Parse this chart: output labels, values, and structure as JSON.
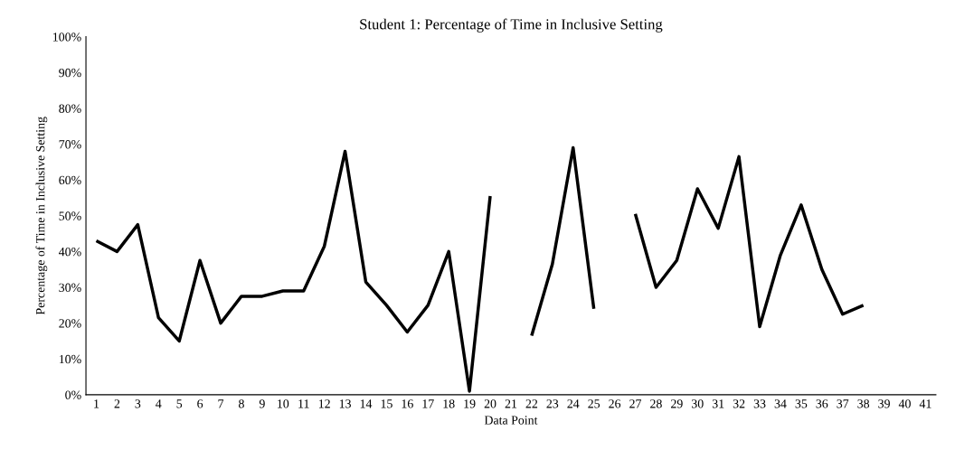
{
  "chart_data": {
    "type": "line",
    "title": "Student 1: Percentage of Time in Inclusive Setting",
    "xlabel": "Data Point",
    "ylabel": "Percentage of Time in Inclusive Setting",
    "categories": [
      "1",
      "2",
      "3",
      "4",
      "5",
      "6",
      "7",
      "8",
      "9",
      "10",
      "11",
      "12",
      "13",
      "14",
      "15",
      "16",
      "17",
      "18",
      "19",
      "20",
      "21",
      "22",
      "23",
      "24",
      "25",
      "26",
      "27",
      "28",
      "29",
      "30",
      "31",
      "32",
      "33",
      "34",
      "35",
      "36",
      "37",
      "38",
      "39",
      "40",
      "41"
    ],
    "series": [
      {
        "color": "#000000",
        "values": [
          43,
          40,
          47.5,
          21.5,
          15,
          37.5,
          20,
          27.5,
          27.5,
          29,
          29,
          41.5,
          68,
          31.5,
          25,
          17.5,
          25,
          40,
          1,
          55.5,
          null,
          16.5,
          36.5,
          69,
          24,
          null,
          50.5,
          30,
          37.5,
          57.5,
          46.5,
          66.5,
          19,
          39,
          53,
          35,
          22.5,
          25,
          null,
          null,
          null
        ]
      }
    ],
    "ylim": [
      0,
      100
    ],
    "yticks": [
      {
        "value": 0,
        "label": "0%"
      },
      {
        "value": 10,
        "label": "10%"
      },
      {
        "value": 20,
        "label": "20%"
      },
      {
        "value": 30,
        "label": "30%"
      },
      {
        "value": 40,
        "label": "40%"
      },
      {
        "value": 50,
        "label": "50%"
      },
      {
        "value": 60,
        "label": "60%"
      },
      {
        "value": 70,
        "label": "70%"
      },
      {
        "value": 80,
        "label": "80%"
      },
      {
        "value": 90,
        "label": "90%"
      },
      {
        "value": 100,
        "label": "100%"
      }
    ],
    "grid": false,
    "marker": "none",
    "line_style": "solid"
  }
}
